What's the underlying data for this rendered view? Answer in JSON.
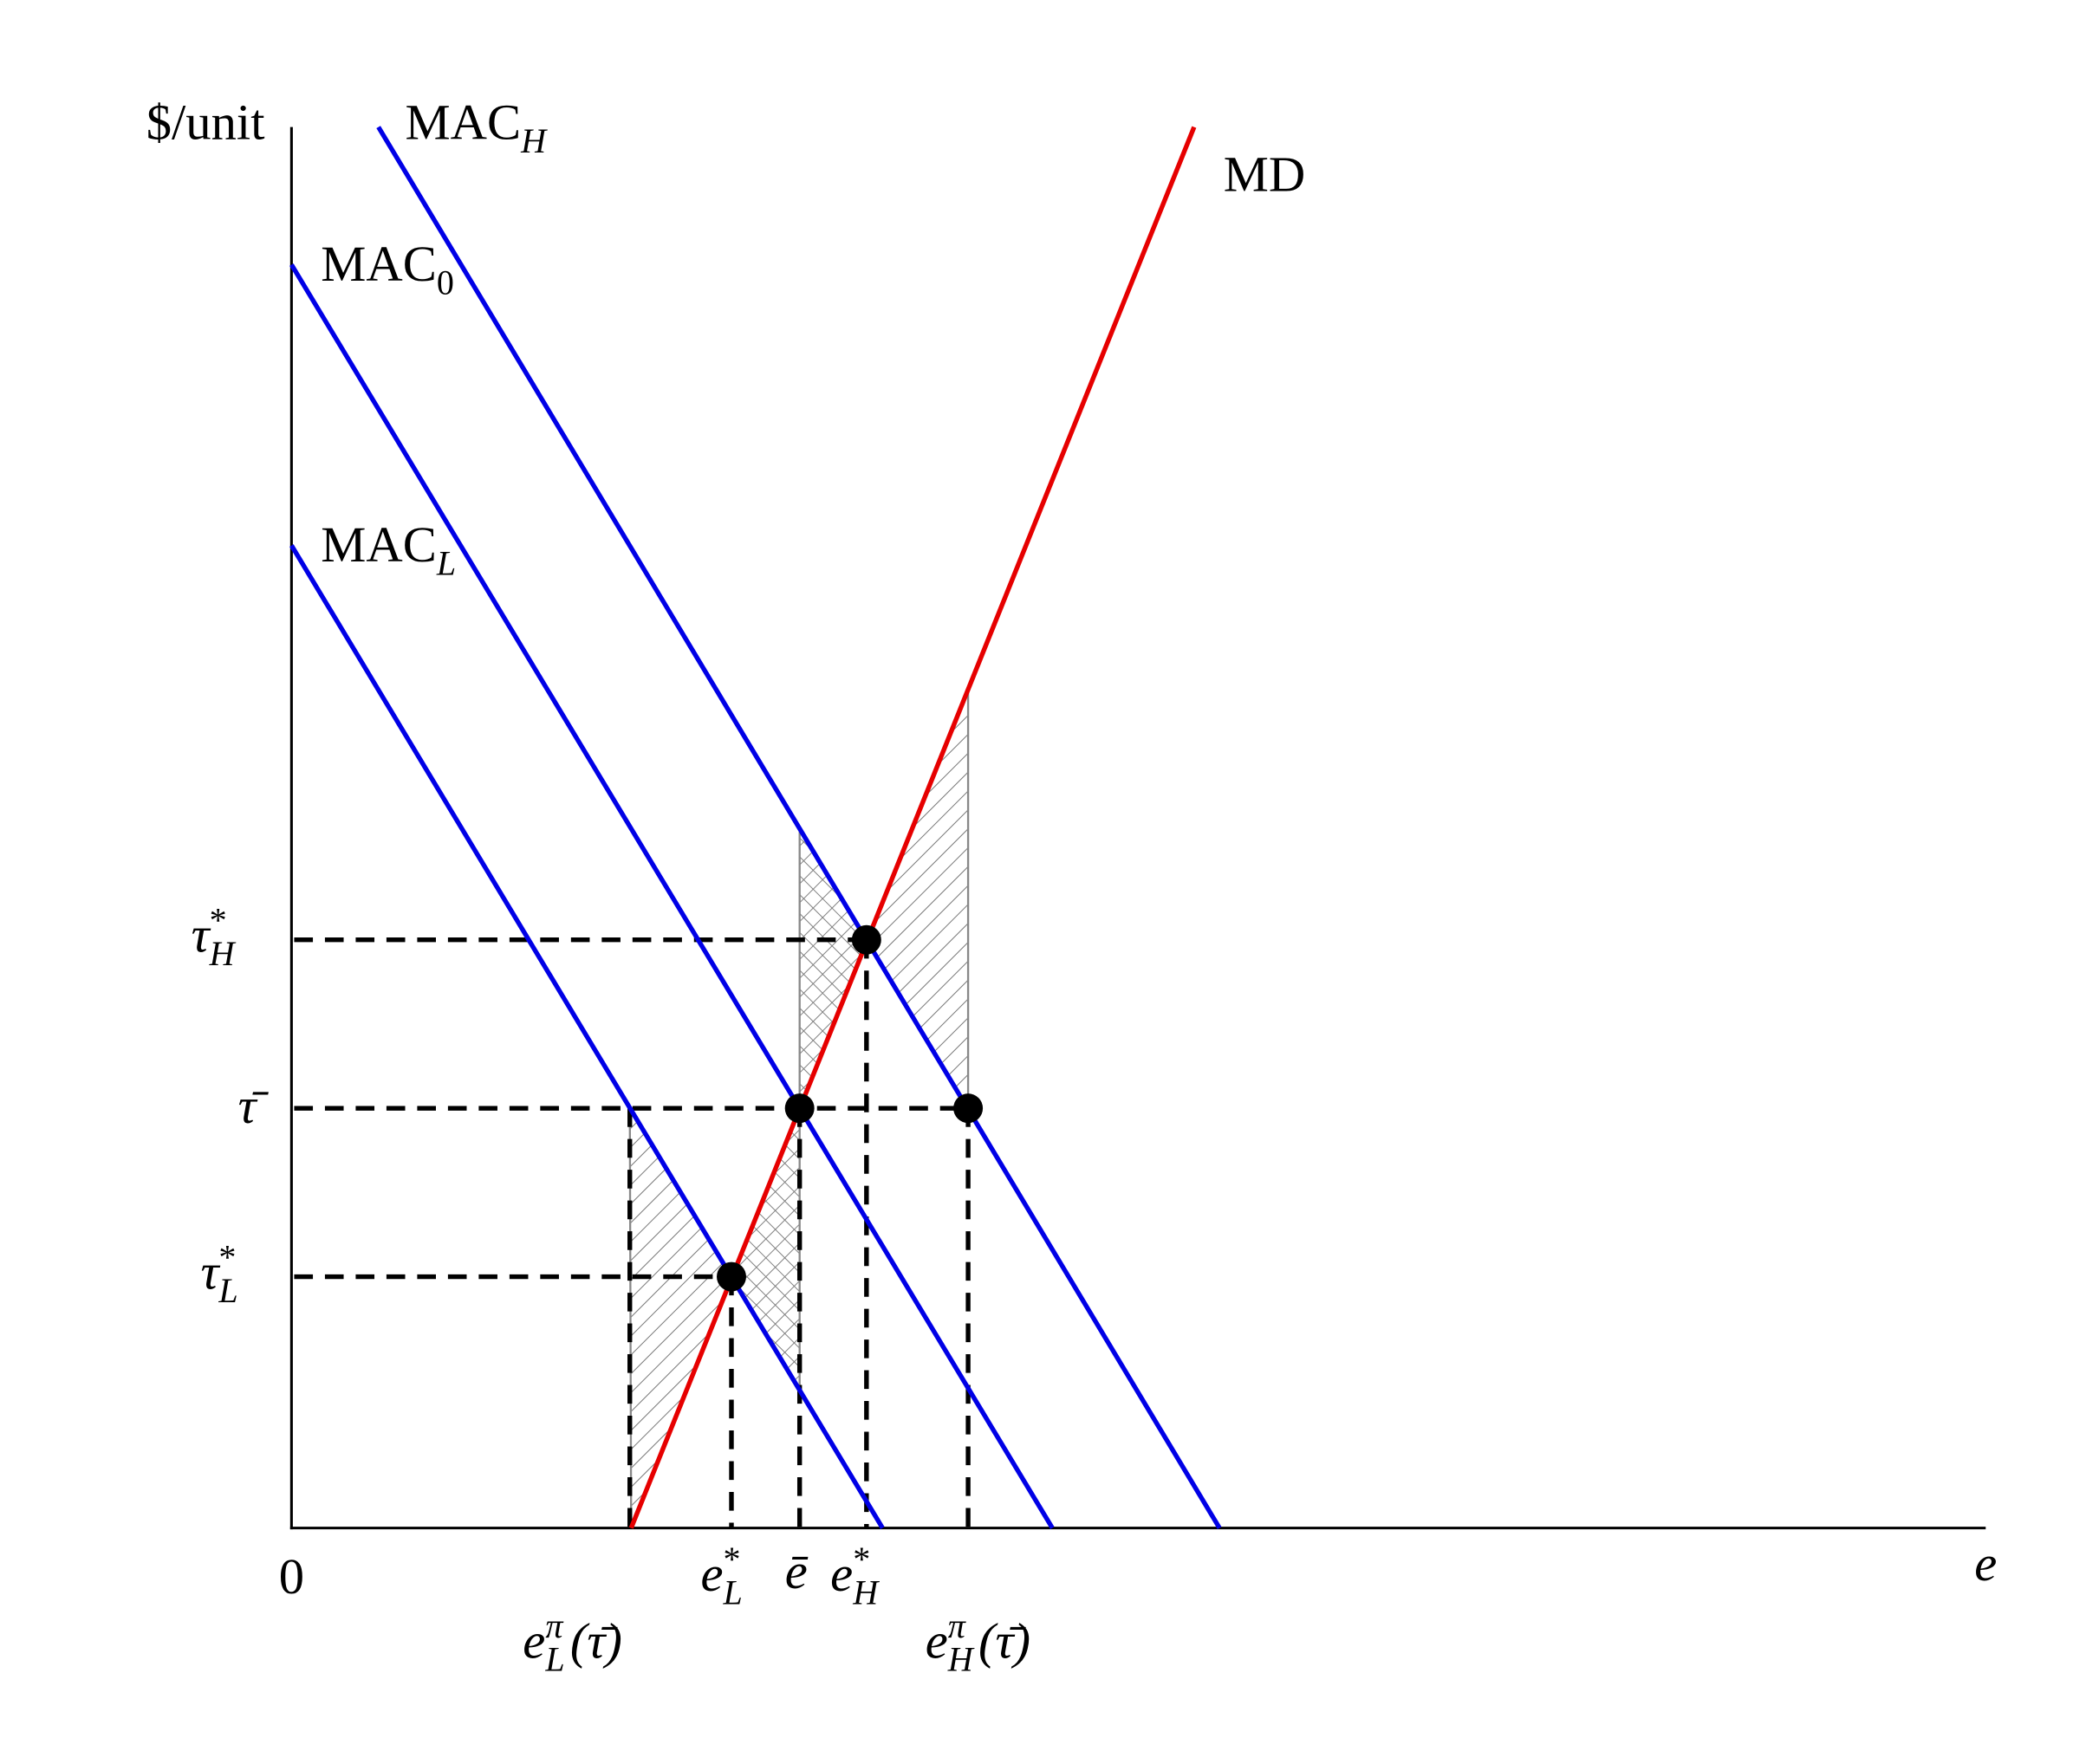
{
  "labels": {
    "y_axis": {
      "base": "$/unit"
    },
    "x_axis": {
      "base": "e"
    },
    "origin": {
      "base": "0"
    },
    "mac_h": {
      "base": "MAC",
      "sub": "H"
    },
    "mac_0": {
      "base": "MAC",
      "sub": "0"
    },
    "mac_l": {
      "base": "MAC",
      "sub": "L"
    },
    "md": {
      "base": "MD"
    },
    "tau_h": {
      "base": "τ",
      "sup": "*",
      "sub": "H"
    },
    "tau_bar": {
      "base": "τ̄"
    },
    "tau_l": {
      "base": "τ",
      "sup": "*",
      "sub": "L"
    },
    "e_l": {
      "base": "e",
      "sup": "*",
      "sub": "L"
    },
    "e_bar": {
      "base": "ē"
    },
    "e_h": {
      "base": "e",
      "sup": "*",
      "sub": "H"
    },
    "e_pi_l": {
      "base": "e",
      "sup": "π",
      "sub": "L",
      "arg": "(τ̄)"
    },
    "e_pi_h": {
      "base": "e",
      "sup": "π",
      "sub": "H",
      "arg": "(τ̄)"
    }
  }
}
